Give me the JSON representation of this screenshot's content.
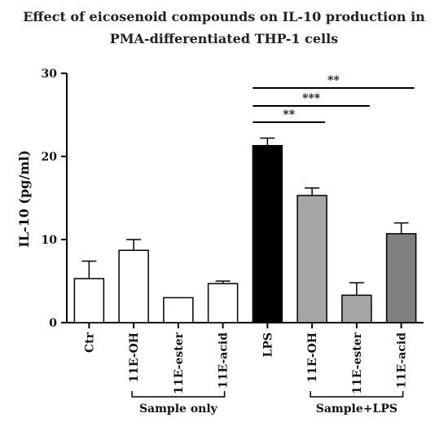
{
  "chart_data": {
    "type": "bar",
    "title_line1": "Effect of eicosenoid compounds on IL-10 production in",
    "title_line2": "PMA-differentiated THP-1 cells",
    "ylabel": "IL-10 (pg/ml)",
    "xlabel": "",
    "ylim": [
      0,
      30
    ],
    "yticks": [
      0,
      10,
      20,
      30
    ],
    "categories": [
      "Ctr",
      "11E-OH",
      "11E-ester",
      "11E-acid",
      "LPS",
      "11E-OH",
      "11E-ester",
      "11E-acid"
    ],
    "values": [
      5.3,
      8.7,
      3.0,
      4.7,
      21.3,
      15.3,
      3.3,
      10.7
    ],
    "errors": [
      2.1,
      1.3,
      0,
      0.3,
      0.9,
      0.9,
      1.5,
      1.3
    ],
    "fills": [
      "#ffffff",
      "#ffffff",
      "#ffffff",
      "#ffffff",
      "#000000",
      "#a6a6a6",
      "#a6a6a6",
      "#7f7f7f"
    ],
    "groups": [
      {
        "label": "Sample only",
        "from": 1,
        "to": 3
      },
      {
        "label": "Sample+LPS",
        "from": 5,
        "to": 7
      }
    ],
    "significance": [
      {
        "from": 4,
        "to": 5,
        "label": "**"
      },
      {
        "from": 4,
        "to": 6,
        "label": "***"
      },
      {
        "from": 4,
        "to": 7,
        "label": "**"
      }
    ]
  }
}
